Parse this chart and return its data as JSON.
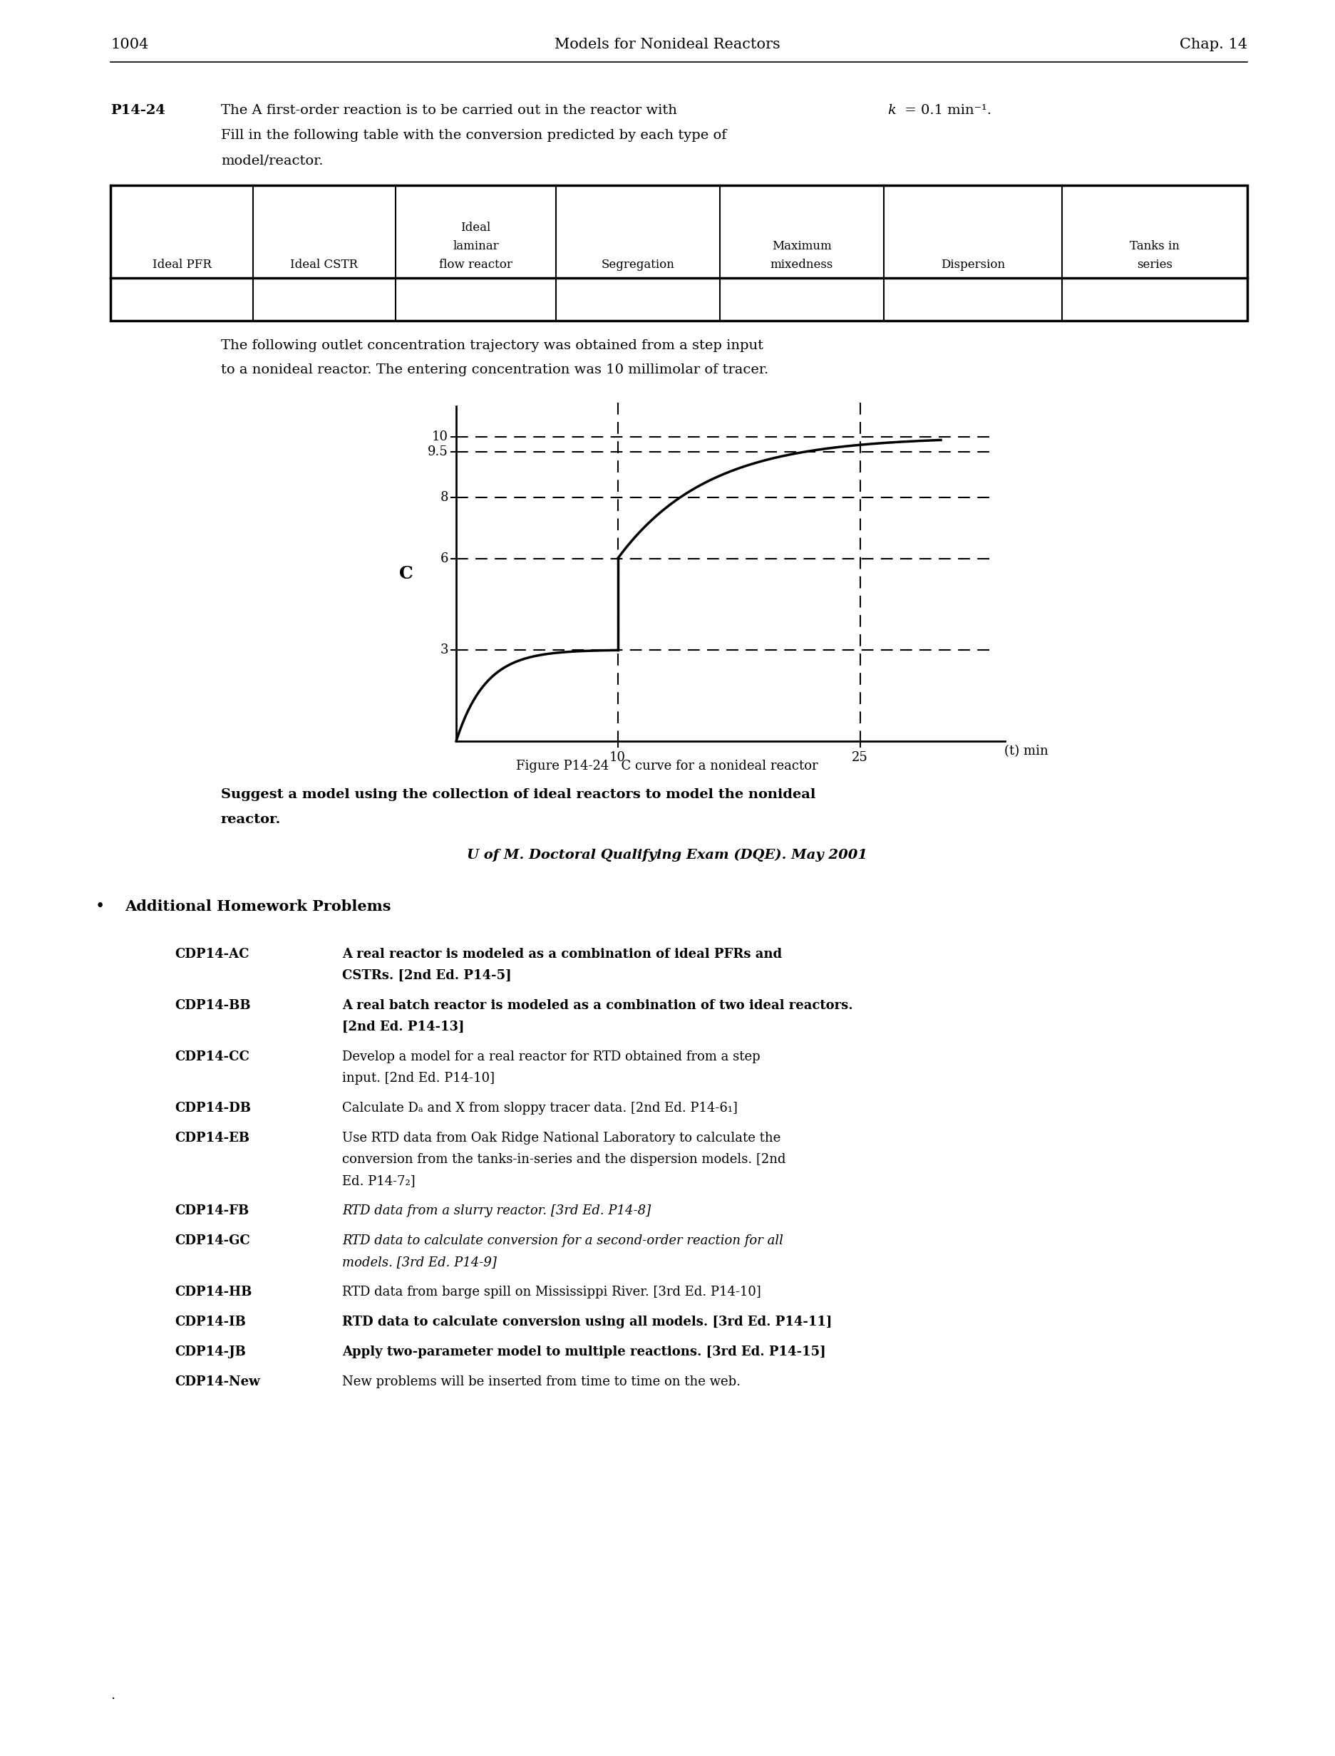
{
  "page_number": "1004",
  "header_center": "Models for Nonideal Reactors",
  "header_right": "Chap. 14",
  "problem_label": "P14-24",
  "table_headers": [
    "Ideal PFR",
    "Ideal CSTR",
    "Ideal\nlaminar\nflow reactor",
    "Segregation",
    "Maximum\nmixedness",
    "Dispersion",
    "Tanks in\nseries"
  ],
  "yticks": [
    3,
    6,
    8,
    9.5,
    10
  ],
  "xticks": [
    10,
    25
  ],
  "xlabel": "(t) min",
  "ylabel": "C",
  "additional_items": [
    {
      "label": "CDP14-A",
      "sub": "C",
      "text": "A real reactor is modeled as a combination of ideal PFRs and\nCSTRs. [2nd Ed. P14-5]",
      "bold": true,
      "italic": false
    },
    {
      "label": "CDP14-B",
      "sub": "B",
      "text": "A real batch reactor is modeled as a combination of two ideal reactors.\n[2nd Ed. P14-13]",
      "bold": true,
      "italic": false
    },
    {
      "label": "CDP14-C",
      "sub": "C",
      "text": "Develop a model for a real reactor for RTD obtained from a step\ninput. [2nd Ed. P14-10]",
      "bold": false,
      "italic": false
    },
    {
      "label": "CDP14-D",
      "sub": "B",
      "text": "Calculate Dₐ and X from sloppy tracer data. [2nd Ed. P14-6₁]",
      "bold": false,
      "italic": false
    },
    {
      "label": "CDP14-E",
      "sub": "B",
      "text": "Use RTD data from Oak Ridge National Laboratory to calculate the\nconversion from the tanks-in-series and the dispersion models. [2nd\nEd. P14-7₂]",
      "bold": false,
      "italic": false
    },
    {
      "label": "CDP14-F",
      "sub": "B",
      "text": "RTD data from a slurry reactor. [3rd Ed. P14-8]",
      "bold": false,
      "italic": true
    },
    {
      "label": "CDP14-G",
      "sub": "C",
      "text": "RTD data to calculate conversion for a second-order reaction for all\nmodels. [3rd Ed. P14-9]",
      "bold": false,
      "italic": true
    },
    {
      "label": "CDP14-H",
      "sub": "B",
      "text": "RTD data from barge spill on Mississippi River. [3rd Ed. P14-10]",
      "bold": false,
      "italic": false
    },
    {
      "label": "CDP14-I",
      "sub": "B",
      "text": "RTD data to calculate conversion using all models. [3rd Ed. P14-11]",
      "bold": true,
      "italic": false
    },
    {
      "label": "CDP14-J",
      "sub": "B",
      "text": "Apply two-parameter model to multiple reactions. [3rd Ed. P14-15]",
      "bold": true,
      "italic": false
    },
    {
      "label": "CDP14-New",
      "sub": "",
      "text": "New problems will be inserted from time to time on the web.",
      "bold": false,
      "italic": false
    }
  ],
  "background_color": "#ffffff",
  "text_color": "#000000"
}
